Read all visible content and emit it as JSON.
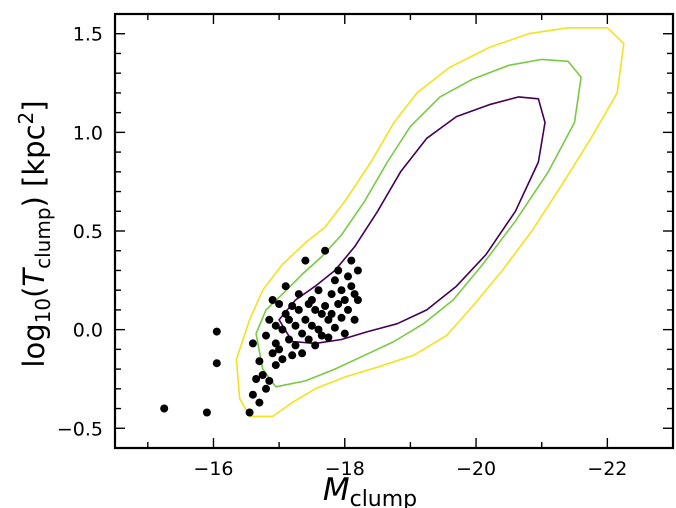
{
  "chart_data": {
    "type": "scatter",
    "title": "",
    "xlabel": {
      "main": "M",
      "sub": "clump"
    },
    "ylabel": {
      "prefix": "log",
      "base": "10",
      "open": "(",
      "var": "T",
      "sub": "clump",
      "close": ")",
      "unit_open": " [kpc",
      "unit_exp": "2",
      "unit_close": "]"
    },
    "xlim": [
      -14.5,
      -23.0
    ],
    "ylim": [
      -0.6,
      1.6
    ],
    "xticks": [
      -16,
      -18,
      -20,
      -22
    ],
    "xtick_labels": [
      "−16",
      "−18",
      "−20",
      "−22"
    ],
    "yticks": [
      -0.5,
      0.0,
      0.5,
      1.0,
      1.5
    ],
    "ytick_labels": [
      "−0.5",
      "0.0",
      "0.5",
      "1.0",
      "1.5"
    ],
    "grid": false,
    "legend": "none",
    "contours": [
      {
        "level": "outer",
        "color": "#f2e21f",
        "points": [
          [
            -16.55,
            -0.44
          ],
          [
            -16.4,
            -0.35
          ],
          [
            -16.35,
            -0.15
          ],
          [
            -16.55,
            0.05
          ],
          [
            -16.75,
            0.2
          ],
          [
            -17.05,
            0.33
          ],
          [
            -17.4,
            0.44
          ],
          [
            -17.7,
            0.52
          ],
          [
            -18.0,
            0.65
          ],
          [
            -18.4,
            0.85
          ],
          [
            -18.75,
            1.05
          ],
          [
            -19.1,
            1.2
          ],
          [
            -19.6,
            1.33
          ],
          [
            -20.2,
            1.43
          ],
          [
            -20.8,
            1.5
          ],
          [
            -21.4,
            1.53
          ],
          [
            -22.0,
            1.53
          ],
          [
            -22.25,
            1.45
          ],
          [
            -22.15,
            1.2
          ],
          [
            -21.75,
            0.97
          ],
          [
            -21.3,
            0.73
          ],
          [
            -20.85,
            0.5
          ],
          [
            -20.4,
            0.3
          ],
          [
            -19.95,
            0.12
          ],
          [
            -19.55,
            -0.03
          ],
          [
            -19.05,
            -0.13
          ],
          [
            -18.5,
            -0.19
          ],
          [
            -18.0,
            -0.24
          ],
          [
            -17.55,
            -0.3
          ],
          [
            -17.2,
            -0.37
          ],
          [
            -16.9,
            -0.44
          ],
          [
            -16.55,
            -0.44
          ]
        ]
      },
      {
        "level": "middle",
        "color": "#7ac943",
        "points": [
          [
            -16.95,
            -0.29
          ],
          [
            -16.75,
            -0.2
          ],
          [
            -16.65,
            -0.02
          ],
          [
            -16.8,
            0.1
          ],
          [
            -17.05,
            0.18
          ],
          [
            -17.35,
            0.28
          ],
          [
            -17.65,
            0.37
          ],
          [
            -17.95,
            0.48
          ],
          [
            -18.3,
            0.65
          ],
          [
            -18.65,
            0.85
          ],
          [
            -19.0,
            1.03
          ],
          [
            -19.45,
            1.18
          ],
          [
            -19.95,
            1.27
          ],
          [
            -20.5,
            1.34
          ],
          [
            -21.0,
            1.37
          ],
          [
            -21.4,
            1.36
          ],
          [
            -21.6,
            1.28
          ],
          [
            -21.5,
            1.05
          ],
          [
            -21.1,
            0.8
          ],
          [
            -20.6,
            0.55
          ],
          [
            -20.1,
            0.33
          ],
          [
            -19.65,
            0.15
          ],
          [
            -19.2,
            0.03
          ],
          [
            -18.75,
            -0.06
          ],
          [
            -18.3,
            -0.13
          ],
          [
            -17.85,
            -0.2
          ],
          [
            -17.4,
            -0.26
          ],
          [
            -16.95,
            -0.29
          ]
        ]
      },
      {
        "level": "inner",
        "color": "#440154",
        "points": [
          [
            -17.2,
            -0.06
          ],
          [
            -17.0,
            0.05
          ],
          [
            -17.25,
            0.15
          ],
          [
            -17.55,
            0.22
          ],
          [
            -17.85,
            0.3
          ],
          [
            -18.15,
            0.42
          ],
          [
            -18.5,
            0.6
          ],
          [
            -18.85,
            0.8
          ],
          [
            -19.25,
            0.97
          ],
          [
            -19.7,
            1.08
          ],
          [
            -20.2,
            1.14
          ],
          [
            -20.65,
            1.18
          ],
          [
            -20.95,
            1.17
          ],
          [
            -21.05,
            1.05
          ],
          [
            -20.95,
            0.85
          ],
          [
            -20.6,
            0.6
          ],
          [
            -20.15,
            0.38
          ],
          [
            -19.7,
            0.22
          ],
          [
            -19.25,
            0.1
          ],
          [
            -18.8,
            0.03
          ],
          [
            -18.35,
            -0.01
          ],
          [
            -17.95,
            -0.05
          ],
          [
            -17.55,
            -0.07
          ],
          [
            -17.2,
            -0.06
          ]
        ]
      }
    ],
    "series": [
      {
        "color": "#000000",
        "points": [
          [
            -15.25,
            -0.4
          ],
          [
            -15.9,
            -0.42
          ],
          [
            -16.05,
            -0.01
          ],
          [
            -16.05,
            -0.17
          ],
          [
            -16.55,
            -0.42
          ],
          [
            -16.6,
            -0.33
          ],
          [
            -16.6,
            -0.07
          ],
          [
            -16.65,
            -0.25
          ],
          [
            -16.7,
            -0.37
          ],
          [
            -16.7,
            -0.16
          ],
          [
            -16.75,
            -0.23
          ],
          [
            -16.8,
            -0.3
          ],
          [
            -16.8,
            -0.03
          ],
          [
            -16.85,
            -0.26
          ],
          [
            -16.85,
            0.05
          ],
          [
            -16.9,
            -0.12
          ],
          [
            -16.9,
            0.15
          ],
          [
            -16.95,
            -0.07
          ],
          [
            -16.95,
            0.02
          ],
          [
            -16.95,
            -0.18
          ],
          [
            -17.0,
            0.13
          ],
          [
            -17.0,
            -0.1
          ],
          [
            -17.05,
            0.0
          ],
          [
            -17.05,
            -0.15
          ],
          [
            -17.1,
            0.08
          ],
          [
            -17.1,
            0.22
          ],
          [
            -17.15,
            -0.05
          ],
          [
            -17.15,
            0.05
          ],
          [
            -17.2,
            -0.13
          ],
          [
            -17.2,
            0.12
          ],
          [
            -17.25,
            0.02
          ],
          [
            -17.25,
            -0.08
          ],
          [
            -17.3,
            0.18
          ],
          [
            -17.3,
            0.1
          ],
          [
            -17.35,
            -0.02
          ],
          [
            -17.35,
            -0.12
          ],
          [
            -17.4,
            0.35
          ],
          [
            -17.4,
            0.05
          ],
          [
            -17.45,
            0.13
          ],
          [
            -17.45,
            -0.05
          ],
          [
            -17.5,
            0.15
          ],
          [
            -17.5,
            0.02
          ],
          [
            -17.55,
            0.1
          ],
          [
            -17.55,
            -0.08
          ],
          [
            -17.6,
            0.2
          ],
          [
            -17.6,
            0.0
          ],
          [
            -17.65,
            0.08
          ],
          [
            -17.65,
            -0.03
          ],
          [
            -17.7,
            0.4
          ],
          [
            -17.7,
            0.12
          ],
          [
            -17.75,
            0.05
          ],
          [
            -17.75,
            -0.04
          ],
          [
            -17.8,
            0.18
          ],
          [
            -17.8,
            0.08
          ],
          [
            -17.85,
            0.25
          ],
          [
            -17.85,
            0.01
          ],
          [
            -17.9,
            0.13
          ],
          [
            -17.9,
            0.3
          ],
          [
            -17.95,
            0.06
          ],
          [
            -17.95,
            0.2
          ],
          [
            -18.0,
            0.15
          ],
          [
            -18.0,
            -0.02
          ],
          [
            -18.05,
            0.27
          ],
          [
            -18.05,
            0.1
          ],
          [
            -18.1,
            0.35
          ],
          [
            -18.1,
            0.22
          ],
          [
            -18.15,
            0.18
          ],
          [
            -18.15,
            0.05
          ],
          [
            -18.2,
            0.3
          ],
          [
            -18.2,
            0.15
          ]
        ]
      }
    ]
  }
}
